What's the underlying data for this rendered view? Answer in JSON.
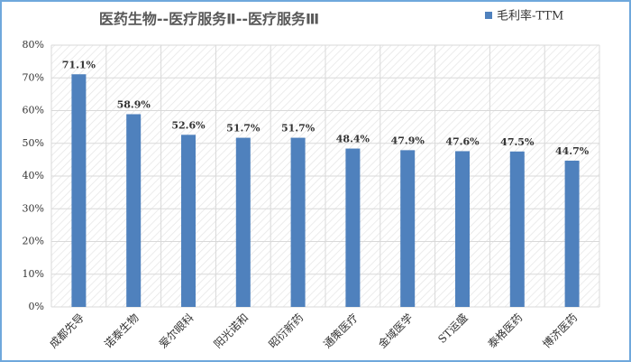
{
  "chart_data": {
    "type": "bar",
    "title": "医药生物--医疗服务Ⅱ--医疗服务Ⅲ",
    "categories": [
      "成都先导",
      "诺泰生物",
      "爱尔眼科",
      "阳光诺和",
      "昭衍新药",
      "通策医疗",
      "金域医学",
      "ST运盛",
      "泰格医药",
      "博济医药"
    ],
    "series": [
      {
        "name": "毛利率-TTM",
        "color": "#4f81bd",
        "values": [
          71.1,
          58.9,
          52.6,
          51.7,
          51.7,
          48.4,
          47.9,
          47.6,
          47.5,
          44.7
        ],
        "value_labels": [
          "71.1%",
          "58.9%",
          "52.6%",
          "51.7%",
          "51.7%",
          "48.4%",
          "47.9%",
          "47.6%",
          "47.5%",
          "44.7%"
        ]
      }
    ],
    "ylim": [
      0,
      80
    ],
    "yticks": [
      {
        "value": 0,
        "label": "0%"
      },
      {
        "value": 10,
        "label": "10%"
      },
      {
        "value": 20,
        "label": "20%"
      },
      {
        "value": 30,
        "label": "30%"
      },
      {
        "value": 40,
        "label": "40%"
      },
      {
        "value": 50,
        "label": "50%"
      },
      {
        "value": 60,
        "label": "60%"
      },
      {
        "value": 70,
        "label": "70%"
      },
      {
        "value": 80,
        "label": "80%"
      }
    ],
    "grid": true
  }
}
